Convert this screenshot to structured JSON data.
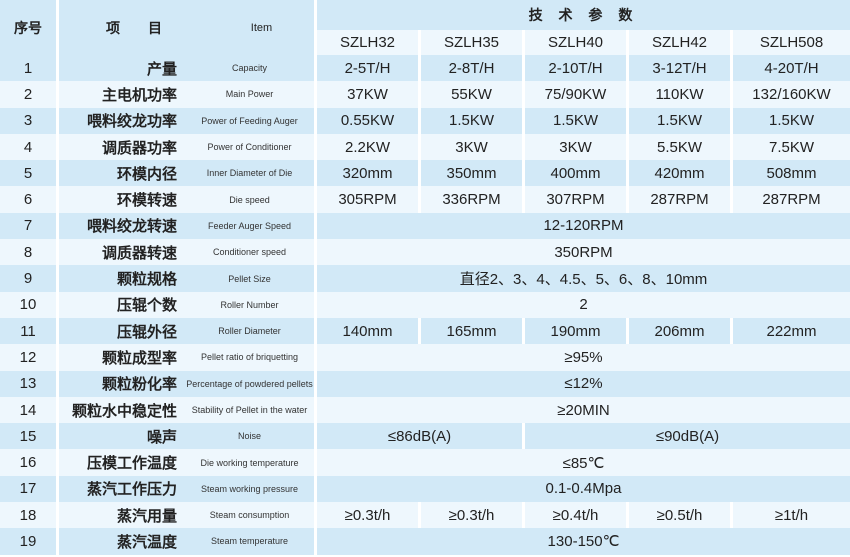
{
  "header": {
    "no": "序号",
    "item_zh": "项　　目",
    "item_en": "Item",
    "spec": "技 术 参 数",
    "models": [
      "SZLH32",
      "SZLH35",
      "SZLH40",
      "SZLH42",
      "SZLH508"
    ]
  },
  "rows": [
    {
      "no": "1",
      "zh": "产量",
      "en": "Capacity",
      "values": [
        "2-5T/H",
        "2-8T/H",
        "2-10T/H",
        "3-12T/H",
        "4-20T/H"
      ]
    },
    {
      "no": "2",
      "zh": "主电机功率",
      "en": "Main Power",
      "values": [
        "37KW",
        "55KW",
        "75/90KW",
        "110KW",
        "132/160KW"
      ]
    },
    {
      "no": "3",
      "zh": "喂料绞龙功率",
      "en": "Power of Feeding Auger",
      "values": [
        "0.55KW",
        "1.5KW",
        "1.5KW",
        "1.5KW",
        "1.5KW"
      ]
    },
    {
      "no": "4",
      "zh": "调质器功率",
      "en": "Power of Conditioner",
      "values": [
        "2.2KW",
        "3KW",
        "3KW",
        "5.5KW",
        "7.5KW"
      ]
    },
    {
      "no": "5",
      "zh": "环模内径",
      "en": "Inner Diameter of Die",
      "values": [
        "320mm",
        "350mm",
        "400mm",
        "420mm",
        "508mm"
      ]
    },
    {
      "no": "6",
      "zh": "环模转速",
      "en": "Die speed",
      "values": [
        "305RPM",
        "336RPM",
        "307RPM",
        "287RPM",
        "287RPM"
      ]
    },
    {
      "no": "7",
      "zh": "喂料绞龙转速",
      "en": "Feeder Auger Speed",
      "values": [
        "12-120RPM"
      ]
    },
    {
      "no": "8",
      "zh": "调质器转速",
      "en": "Conditioner speed",
      "values": [
        "350RPM"
      ]
    },
    {
      "no": "9",
      "zh": "颗粒规格",
      "en": "Pellet Size",
      "values": [
        "直径2、3、4、4.5、5、6、8、10mm"
      ]
    },
    {
      "no": "10",
      "zh": "压辊个数",
      "en": "Roller Number",
      "values": [
        "2"
      ]
    },
    {
      "no": "11",
      "zh": "压辊外径",
      "en": "Roller Diameter",
      "values": [
        "140mm",
        "165mm",
        "190mm",
        "206mm",
        "222mm"
      ]
    },
    {
      "no": "12",
      "zh": "颗粒成型率",
      "en": "Pellet ratio of briquetting",
      "values": [
        "≥95%"
      ]
    },
    {
      "no": "13",
      "zh": "颗粒粉化率",
      "en": "Percentage of powdered pellets",
      "values": [
        "≤12%"
      ]
    },
    {
      "no": "14",
      "zh": "颗粒水中稳定性",
      "en": "Stability of Pellet in the water",
      "values": [
        "≥20MIN"
      ]
    },
    {
      "no": "15",
      "zh": "噪声",
      "en": "Noise",
      "values": [
        "≤86dB(A)",
        "≤90dB(A)"
      ]
    },
    {
      "no": "16",
      "zh": "压模工作温度",
      "en": "Die working temperature",
      "values": [
        "≤85℃"
      ]
    },
    {
      "no": "17",
      "zh": "蒸汽工作压力",
      "en": "Steam working pressure",
      "values": [
        "0.1-0.4Mpa"
      ]
    },
    {
      "no": "18",
      "zh": "蒸汽用量",
      "en": "Steam consumption",
      "values": [
        "≥0.3t/h",
        "≥0.3t/h",
        "≥0.4t/h",
        "≥0.5t/h",
        "≥1t/h"
      ]
    },
    {
      "no": "19",
      "zh": "蒸汽温度",
      "en": "Steam temperature",
      "values": [
        "130-150℃"
      ]
    }
  ]
}
